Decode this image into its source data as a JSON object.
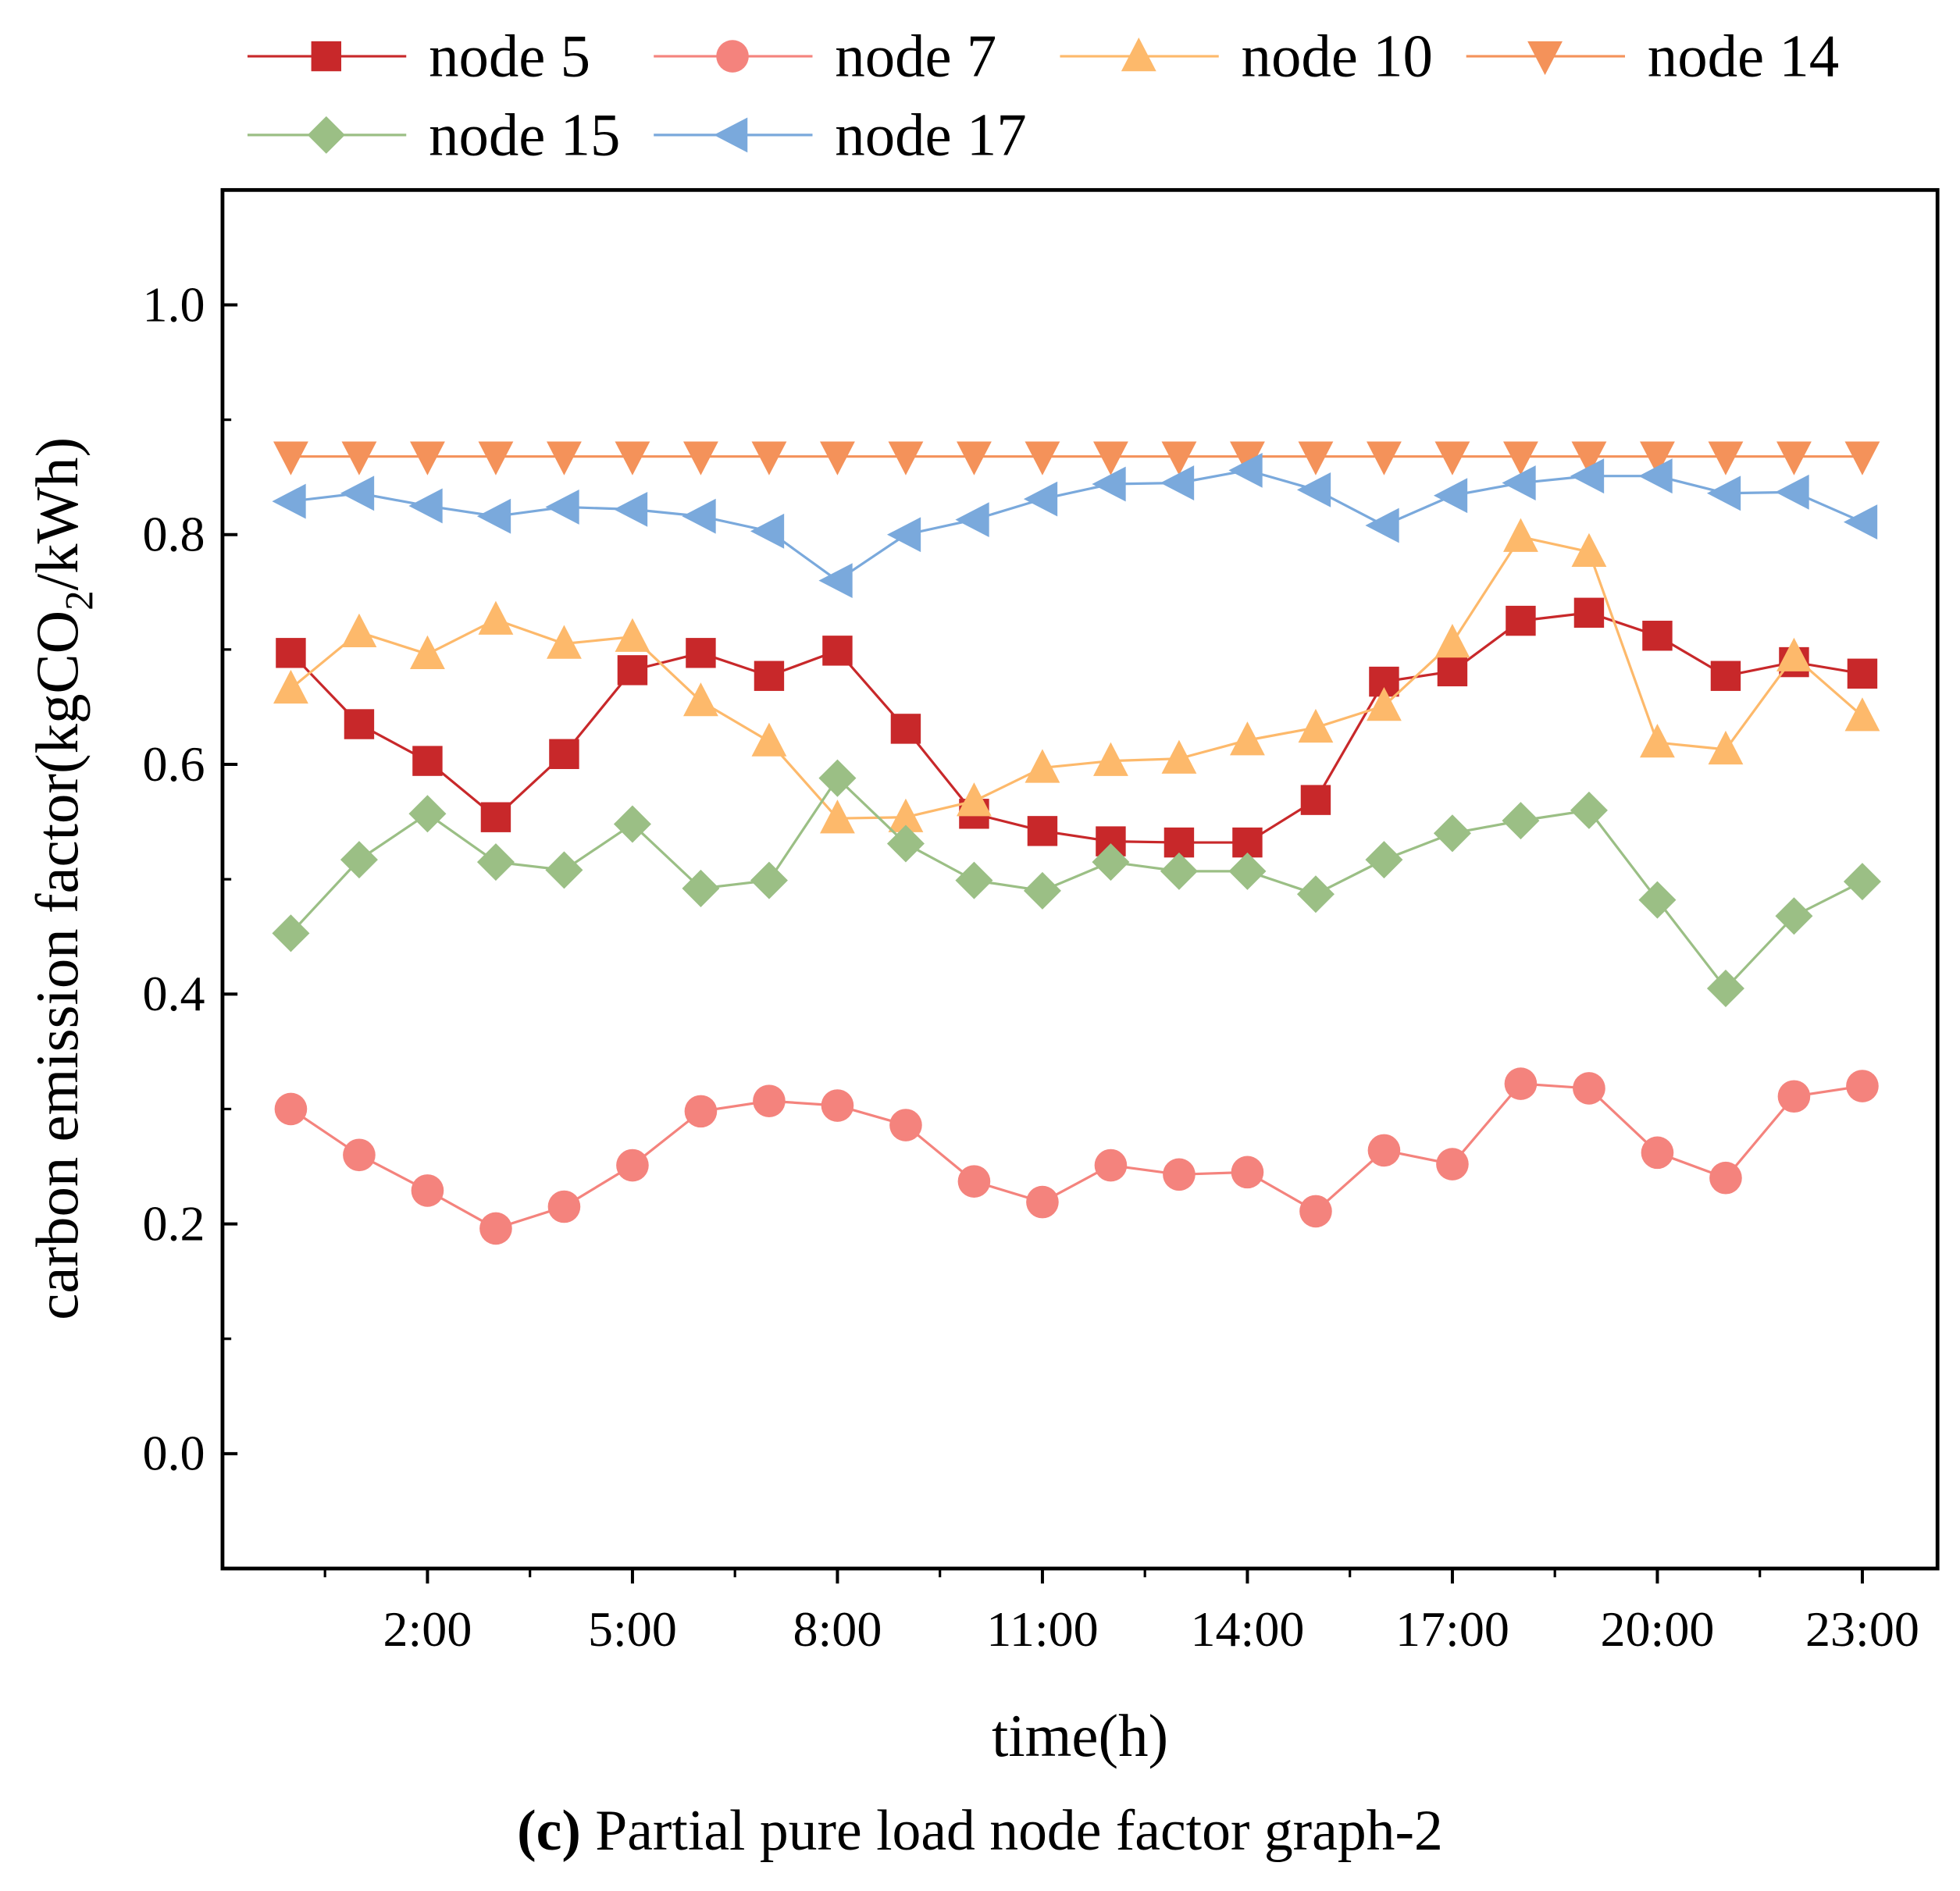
{
  "chart_data": {
    "type": "line",
    "title": "",
    "caption": {
      "label": "(c)",
      "text": " Partial pure load node factor graph-2"
    },
    "xlabel": "time(h)",
    "ylabel": {
      "pre": "carbon emission factor(kgCO",
      "sub": "2",
      "post": "/kWh)"
    },
    "xlim": [
      -1,
      24.1
    ],
    "ylim": [
      -0.1,
      1.1
    ],
    "x": [
      0,
      1,
      2,
      3,
      4,
      5,
      6,
      7,
      8,
      9,
      10,
      11,
      12,
      13,
      14,
      15,
      16,
      17,
      18,
      19,
      20,
      21,
      22,
      23
    ],
    "x_ticks": [
      {
        "v": 2,
        "label": "2:00"
      },
      {
        "v": 5,
        "label": "5:00"
      },
      {
        "v": 8,
        "label": "8:00"
      },
      {
        "v": 11,
        "label": "11:00"
      },
      {
        "v": 14,
        "label": "14:00"
      },
      {
        "v": 17,
        "label": "17:00"
      },
      {
        "v": 20,
        "label": "20:00"
      },
      {
        "v": 23,
        "label": "23:00"
      }
    ],
    "y_ticks": [
      {
        "v": 0,
        "label": "0.0"
      },
      {
        "v": 0.2,
        "label": "0.2"
      },
      {
        "v": 0.4,
        "label": "0.4"
      },
      {
        "v": 0.6,
        "label": "0.6"
      },
      {
        "v": 0.8,
        "label": "0.8"
      },
      {
        "v": 1.0,
        "label": "1.0"
      }
    ],
    "grid": false,
    "legend_position": "top",
    "series": [
      {
        "name": "node 5",
        "color": "#c8282a",
        "marker": "square",
        "values": [
          0.697,
          0.635,
          0.603,
          0.554,
          0.609,
          0.682,
          0.697,
          0.677,
          0.699,
          0.631,
          0.557,
          0.542,
          0.533,
          0.532,
          0.532,
          0.569,
          0.672,
          0.681,
          0.725,
          0.732,
          0.712,
          0.677,
          0.689,
          0.679
        ]
      },
      {
        "name": "node 7",
        "color": "#f4837d",
        "marker": "circle",
        "values": [
          0.3,
          0.26,
          0.229,
          0.196,
          0.215,
          0.251,
          0.298,
          0.307,
          0.303,
          0.286,
          0.237,
          0.219,
          0.251,
          0.243,
          0.245,
          0.211,
          0.264,
          0.252,
          0.322,
          0.318,
          0.262,
          0.24,
          0.311,
          0.32
        ]
      },
      {
        "name": "node 10",
        "color": "#fdb96b",
        "marker": "triangle-up",
        "values": [
          0.666,
          0.715,
          0.696,
          0.726,
          0.705,
          0.711,
          0.655,
          0.62,
          0.553,
          0.554,
          0.568,
          0.597,
          0.603,
          0.605,
          0.621,
          0.632,
          0.651,
          0.706,
          0.798,
          0.785,
          0.619,
          0.613,
          0.694,
          0.642
        ]
      },
      {
        "name": "node 14",
        "color": "#f4925a",
        "marker": "triangle-down",
        "values": [
          0.868,
          0.868,
          0.868,
          0.868,
          0.868,
          0.868,
          0.868,
          0.868,
          0.868,
          0.868,
          0.868,
          0.868,
          0.868,
          0.868,
          0.868,
          0.868,
          0.868,
          0.868,
          0.868,
          0.868,
          0.868,
          0.868,
          0.868,
          0.868
        ]
      },
      {
        "name": "node 15",
        "color": "#9bbf85",
        "marker": "diamond",
        "values": [
          0.453,
          0.517,
          0.557,
          0.515,
          0.508,
          0.548,
          0.492,
          0.499,
          0.588,
          0.531,
          0.499,
          0.49,
          0.515,
          0.507,
          0.507,
          0.487,
          0.517,
          0.54,
          0.551,
          0.56,
          0.482,
          0.405,
          0.468,
          0.498
        ]
      },
      {
        "name": "node 17",
        "color": "#7aa9dc",
        "marker": "triangle-left",
        "values": [
          0.829,
          0.836,
          0.825,
          0.816,
          0.824,
          0.822,
          0.816,
          0.803,
          0.76,
          0.8,
          0.813,
          0.831,
          0.844,
          0.845,
          0.856,
          0.839,
          0.808,
          0.834,
          0.845,
          0.851,
          0.851,
          0.836,
          0.837,
          0.811
        ]
      }
    ]
  }
}
